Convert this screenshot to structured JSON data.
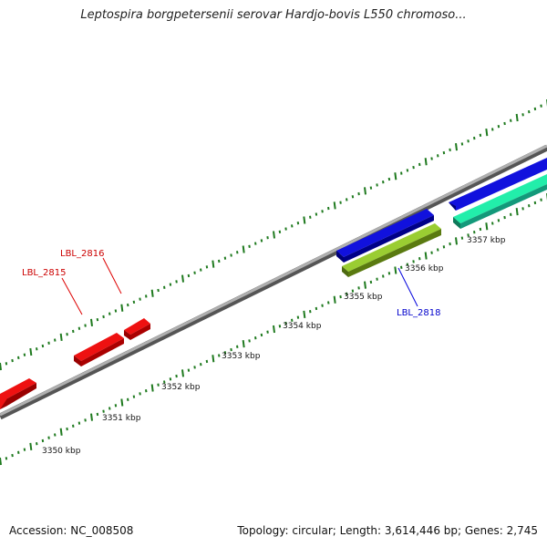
{
  "title": "Leptospira borgpetersenii serovar Hardjo-bovis L550 chromoso...",
  "footer": {
    "accession_label": "Accession:",
    "accession": "NC_008508",
    "topology": "Topology: circular; Length: 3,614,446 bp; Genes: 2,745"
  },
  "colors": {
    "backbone": "#7f7f7f",
    "tick": "#1f7a1f",
    "red_gene": "#ee1111",
    "blue_gene": "#1111dd",
    "green_gene": "#9acd32",
    "cyan_gene": "#22eeaa"
  },
  "kbp_labels": [
    "3350 kbp",
    "3351 kbp",
    "3352 kbp",
    "3353 kbp",
    "3354 kbp",
    "3355 kbp",
    "3356 kbp",
    "3357 kbp"
  ],
  "gene_labels": [
    {
      "text": "LBL_2816",
      "color": "#cc0000"
    },
    {
      "text": "LBL_2815",
      "color": "#cc0000"
    },
    {
      "text": "LBL_2818",
      "color": "#0000cc"
    }
  ]
}
